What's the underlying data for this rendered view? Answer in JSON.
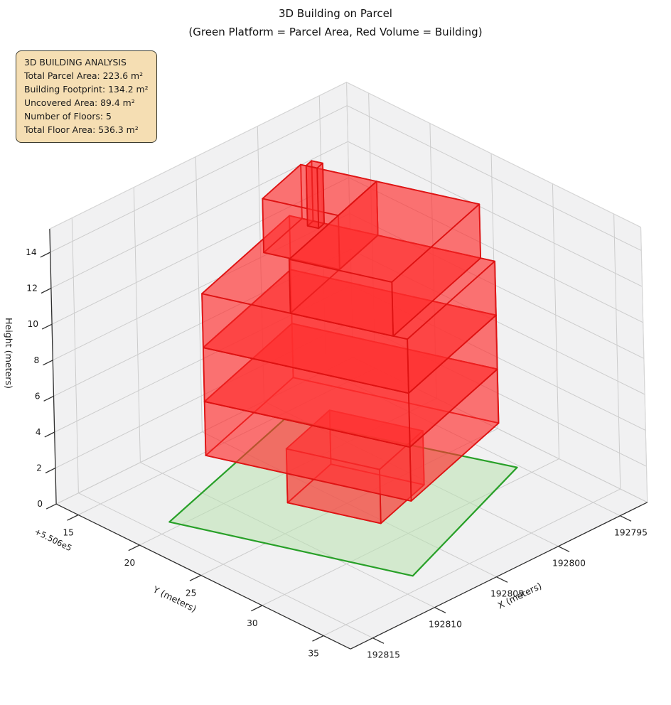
{
  "title": "3D Building on Parcel",
  "subtitle": "(Green Platform = Parcel Area, Red Volume = Building)",
  "annotation": {
    "title": "3D BUILDING ANALYSIS",
    "lines": [
      "Total Parcel Area: 223.6 m²",
      "Building Footprint: 134.2 m²",
      "Uncovered Area: 89.4 m²",
      "Number of Floors: 5",
      "Total Floor Area: 536.3 m²"
    ]
  },
  "chart_data": {
    "type": "3d-building-plot",
    "legend_position": "none",
    "grid": true,
    "axes": {
      "x": {
        "label": "X (meters)",
        "ticks": [
          192795,
          192800,
          192805,
          192810,
          192815
        ],
        "range": [
          192792.8,
          192816.8
        ]
      },
      "y": {
        "label": "Y (meters)",
        "ticks": [
          15,
          20,
          25,
          30,
          35
        ],
        "offset_text": "+5.506e5",
        "base": 550600,
        "range": [
          550613.2,
          550637.2
        ]
      },
      "z": {
        "label": "Height (meters)",
        "ticks": [
          0,
          2,
          4,
          6,
          8,
          10,
          12,
          14
        ],
        "range": [
          0,
          15.3
        ]
      }
    },
    "parcel": {
      "area_m2": 223.6,
      "corners": [
        [
          192813.7,
          550619.3
        ],
        [
          192808.3,
          550633.7
        ],
        [
          192795.2,
          550629.0
        ],
        [
          192800.6,
          550615.5
        ]
      ]
    },
    "building": {
      "footprint_m2": 134.2,
      "uncovered_area_m2": 89.4,
      "num_floors": 5,
      "total_floor_area_m2": 536.3,
      "floor_height_m": 3,
      "frame": {
        "origin": [
          192813.7,
          550619.3
        ],
        "u_dir": [
          -0.351,
          0.935
        ],
        "w_dir": [
          -0.963,
          -0.279
        ]
      },
      "floors": [
        {
          "name": "floor-1",
          "z": [
            0,
            3
          ],
          "rects": [
            [
              4.9,
              4.8,
              10.8,
              9.9
            ]
          ]
        },
        {
          "name": "floor-2",
          "z": [
            3,
            6
          ],
          "rects": [
            [
              1.2,
              2.2,
              14.2,
              12.5
            ]
          ]
        },
        {
          "name": "floor-3",
          "z": [
            6,
            9
          ],
          "rects": [
            [
              1.2,
              2.2,
              14.2,
              12.5
            ]
          ]
        },
        {
          "name": "floor-4",
          "z": [
            9,
            12
          ],
          "rects": [
            [
              1.2,
              2.2,
              14.2,
              12.5
            ]
          ]
        },
        {
          "name": "floor-5",
          "z": [
            12,
            15
          ],
          "rects": [
            [
              2.0,
              8.0,
              6.8,
              12.5
            ],
            [
              6.8,
              2.2,
              13.3,
              12.5
            ]
          ]
        },
        {
          "name": "roof-parapet",
          "z": [
            12,
            15.35
          ],
          "rects": [
            [
              2.7,
              11.85,
              3.4,
              12.5
            ]
          ]
        }
      ]
    },
    "colors": {
      "building_fill": "#ff3030",
      "building_edge": "#dd1111",
      "parcel_fill": "#b9e2b1",
      "parcel_edge": "#28a028",
      "pane": "#f1f1f2",
      "pane_edge": "#d5d5d5",
      "grid": "#cccccc",
      "axis": "#2f2f2f",
      "text": "#1a1a1a"
    }
  }
}
